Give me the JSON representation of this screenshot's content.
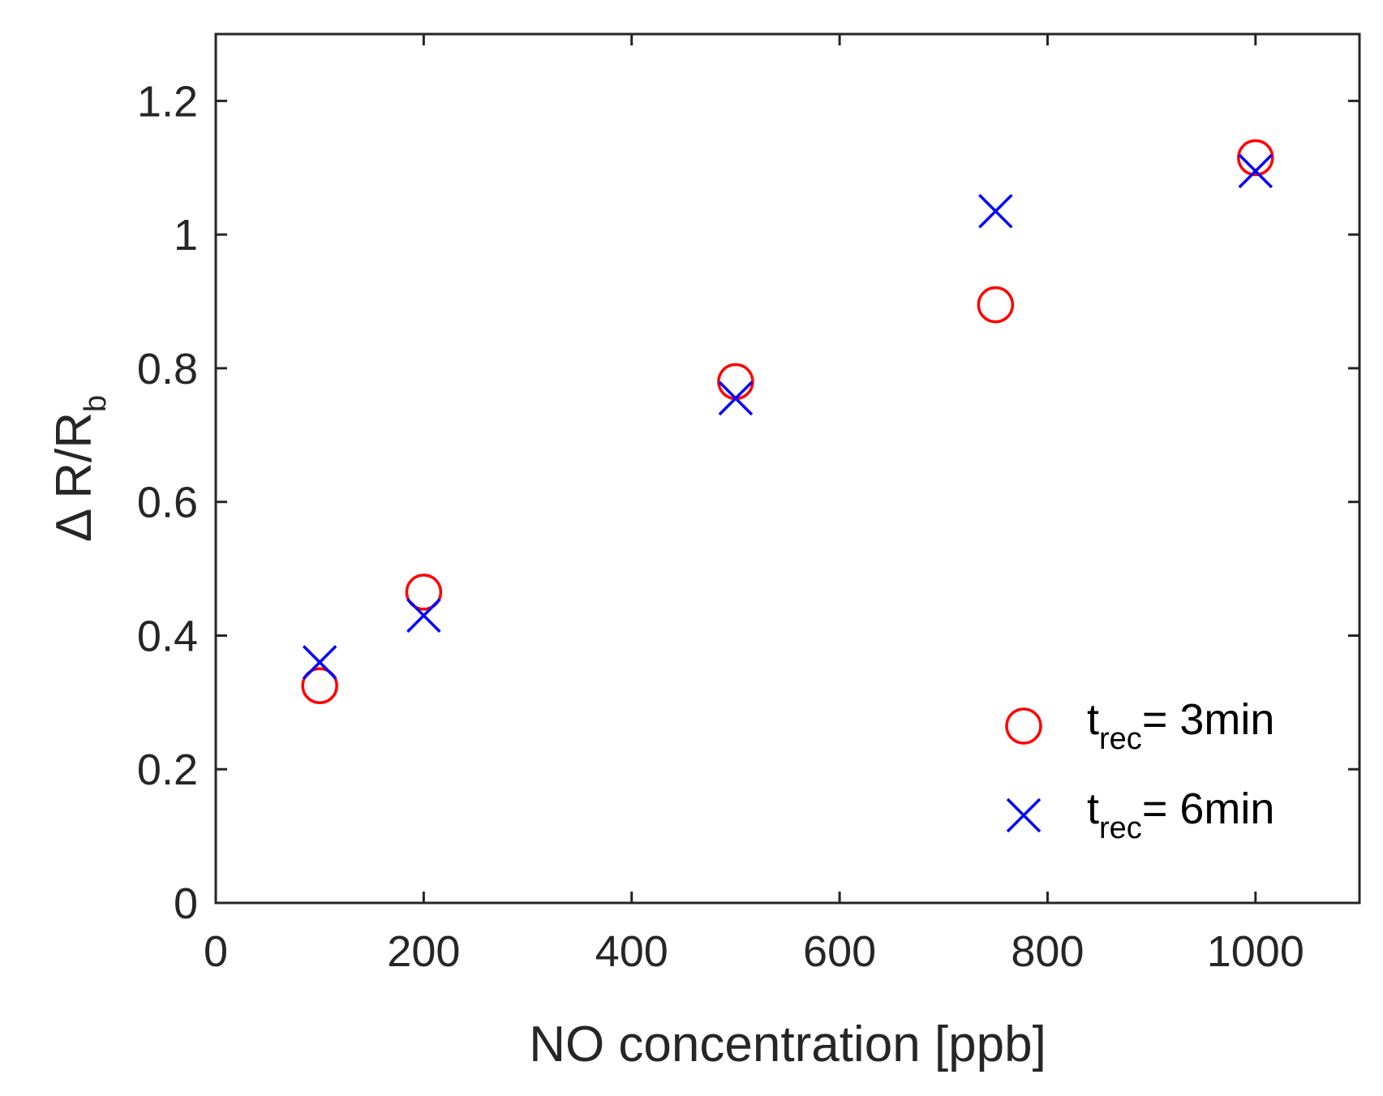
{
  "chart_data": {
    "type": "scatter",
    "title": "",
    "xlabel": "NO concentration [ppb]",
    "ylabel": {
      "delta": "Δ",
      "main": "R/R",
      "sub": "b"
    },
    "xlim": [
      0,
      1100
    ],
    "ylim": [
      0,
      1.3
    ],
    "x_ticks": [
      0,
      200,
      400,
      600,
      800,
      1000
    ],
    "x_tick_labels": [
      "0",
      "200",
      "400",
      "600",
      "800",
      "1000"
    ],
    "y_ticks": [
      0,
      0.2,
      0.4,
      0.6,
      0.8,
      1,
      1.2
    ],
    "y_tick_labels": [
      "0",
      "0.2",
      "0.4",
      "0.6",
      "0.8",
      "1",
      "1.2"
    ],
    "grid": false,
    "legend_position": "bottom-right",
    "series": [
      {
        "name": "t_rec= 3min",
        "legend": {
          "t": "t",
          "sub": "rec",
          "rest": "= 3min"
        },
        "marker": "circle",
        "color": "#ff0000",
        "x": [
          100,
          200,
          500,
          750,
          1000
        ],
        "y": [
          0.325,
          0.465,
          0.78,
          0.895,
          1.115
        ]
      },
      {
        "name": "t_rec= 6min",
        "legend": {
          "t": "t",
          "sub": "rec",
          "rest": "= 6min"
        },
        "marker": "x",
        "color": "#0000ff",
        "x": [
          100,
          200,
          500,
          750,
          1000
        ],
        "y": [
          0.36,
          0.43,
          0.755,
          1.035,
          1.095
        ]
      }
    ]
  }
}
